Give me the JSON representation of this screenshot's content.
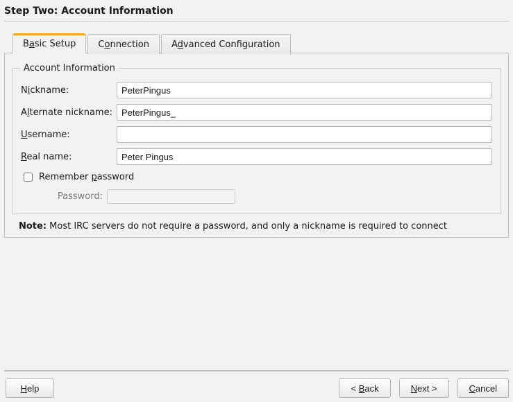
{
  "title": "Step Two: Account Information",
  "tabs": {
    "basic": {
      "pre": "B",
      "mn": "a",
      "post": "sic Setup"
    },
    "conn": {
      "pre": "C",
      "mn": "o",
      "post": "nnection"
    },
    "advanced": {
      "pre": "A",
      "mn": "d",
      "post": "vanced Configuration"
    }
  },
  "group_legend": "Account Information",
  "fields": {
    "nickname": {
      "lpre": "N",
      "lmn": "i",
      "lpost": "ckname:",
      "value": "PeterPingus"
    },
    "altnick": {
      "lpre": "A",
      "lmn": "l",
      "lpost": "ternate nickname:",
      "value": "PeterPingus_"
    },
    "username": {
      "lpre": "",
      "lmn": "U",
      "lpost": "sername:",
      "value": ""
    },
    "realname": {
      "lpre": "",
      "lmn": "R",
      "lpost": "eal name:",
      "value": "Peter Pingus"
    },
    "remember": {
      "lpre": "Remember ",
      "lmn": "p",
      "lpost": "assword",
      "checked": false
    },
    "password": {
      "label": "Password:",
      "value": ""
    }
  },
  "note": {
    "bold": "Note:",
    "text": " Most IRC servers do not require a password, and only a nickname is required to connect"
  },
  "buttons": {
    "help": {
      "pre": "",
      "mn": "H",
      "post": "elp"
    },
    "back": {
      "pre": "< ",
      "mn": "B",
      "post": "ack"
    },
    "next": {
      "pre": "",
      "mn": "N",
      "post": "ext >"
    },
    "cancel": {
      "pre": "",
      "mn": "C",
      "post": "ancel"
    }
  },
  "colors": {
    "accent": "#f5a623",
    "border": "#bdbdbd",
    "background": "#f2f2f2"
  }
}
